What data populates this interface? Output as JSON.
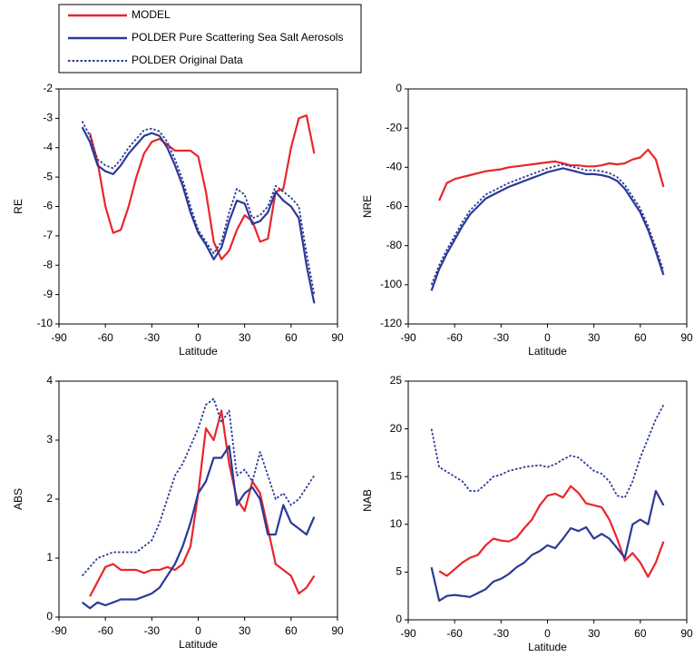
{
  "chart_data": [
    {
      "type": "line",
      "xlabel": "Latitude",
      "ylabel": "RE",
      "x": [
        -75,
        -70,
        -65,
        -60,
        -55,
        -50,
        -45,
        -40,
        -35,
        -30,
        -25,
        -20,
        -15,
        -10,
        -5,
        0,
        5,
        10,
        15,
        20,
        25,
        30,
        35,
        40,
        45,
        50,
        55,
        60,
        65,
        70,
        75
      ],
      "xlim": [
        -90,
        90
      ],
      "xticks": [
        -90,
        -60,
        -30,
        0,
        30,
        60,
        90
      ],
      "ylim": [
        -10,
        -2
      ],
      "yticks": [
        -10,
        -9,
        -8,
        -7,
        -6,
        -5,
        -4,
        -3,
        -2
      ],
      "series": [
        {
          "name": "MODEL",
          "color": "#e8262b",
          "style": "solid",
          "values": [
            null,
            -3.5,
            -4.5,
            -6,
            -6.9,
            -6.8,
            -6,
            -5,
            -4.2,
            -3.8,
            -3.7,
            -3.9,
            -4.1,
            -4.1,
            -4.1,
            -4.3,
            -5.5,
            -7.2,
            -7.8,
            -7.5,
            -6.8,
            -6.3,
            -6.5,
            -7.2,
            -7.1,
            -5.5,
            -5.4,
            -4,
            -3,
            -2.9,
            -4.2
          ]
        },
        {
          "name": "POLDER Pure Scattering Sea Salt Aerosols",
          "color": "#2b3a97",
          "style": "solid",
          "values": [
            -3.3,
            -3.8,
            -4.6,
            -4.8,
            -4.9,
            -4.6,
            -4.2,
            -3.9,
            -3.6,
            -3.5,
            -3.6,
            -4,
            -4.6,
            -5.3,
            -6.2,
            -6.9,
            -7.3,
            -7.8,
            -7.4,
            -6.5,
            -5.8,
            -5.9,
            -6.6,
            -6.5,
            -6.2,
            -5.5,
            -5.8,
            -6,
            -6.4,
            -8,
            -9.3
          ]
        },
        {
          "name": "POLDER Original Data",
          "color": "#2b3a97",
          "style": "dotted",
          "values": [
            -3.1,
            -3.6,
            -4.4,
            -4.6,
            -4.7,
            -4.4,
            -4,
            -3.7,
            -3.4,
            -3.35,
            -3.45,
            -3.8,
            -4.4,
            -5.1,
            -6,
            -6.8,
            -7.2,
            -7.6,
            -7.2,
            -6.2,
            -5.4,
            -5.6,
            -6.4,
            -6.3,
            -6,
            -5.3,
            -5.5,
            -5.7,
            -6,
            -7.6,
            -9
          ]
        }
      ]
    },
    {
      "type": "line",
      "xlabel": "Latitude",
      "ylabel": "NRE",
      "x": [
        -75,
        -70,
        -65,
        -60,
        -55,
        -50,
        -45,
        -40,
        -35,
        -30,
        -25,
        -20,
        -15,
        -10,
        -5,
        0,
        5,
        10,
        15,
        20,
        25,
        30,
        35,
        40,
        45,
        50,
        55,
        60,
        65,
        70,
        75
      ],
      "xlim": [
        -90,
        90
      ],
      "xticks": [
        -90,
        -60,
        -30,
        0,
        30,
        60,
        90
      ],
      "ylim": [
        -120,
        0
      ],
      "yticks": [
        -120,
        -100,
        -80,
        -60,
        -40,
        -20,
        0
      ],
      "series": [
        {
          "name": "MODEL",
          "color": "#e8262b",
          "style": "solid",
          "values": [
            null,
            -57,
            -48,
            -46,
            -45,
            -44,
            -43,
            -42,
            -41.5,
            -41,
            -40,
            -39.5,
            -39,
            -38.5,
            -38,
            -37.5,
            -37,
            -38,
            -39,
            -39,
            -39.5,
            -39.5,
            -39,
            -38,
            -38.5,
            -38,
            -36,
            -35,
            -31,
            -36,
            -50
          ]
        },
        {
          "name": "POLDER Pure Scattering Sea Salt Aerosols",
          "color": "#2b3a97",
          "style": "solid",
          "values": [
            -103,
            -92,
            -84,
            -77,
            -70,
            -64,
            -60,
            -56,
            -54,
            -52,
            -50,
            -48.5,
            -47,
            -45.5,
            -44,
            -42.5,
            -41.5,
            -40.5,
            -41.5,
            -42.5,
            -43.5,
            -43.5,
            -44,
            -45,
            -47,
            -51,
            -57,
            -63,
            -72,
            -83,
            -95
          ]
        },
        {
          "name": "POLDER Original Data",
          "color": "#2b3a97",
          "style": "dotted",
          "values": [
            -100,
            -90,
            -82,
            -75,
            -68,
            -62,
            -58,
            -54,
            -52,
            -50,
            -48,
            -46.5,
            -45,
            -43.5,
            -42,
            -40.5,
            -39.5,
            -38.5,
            -39.5,
            -40.5,
            -41.5,
            -41.5,
            -42,
            -43,
            -45,
            -49,
            -55,
            -61,
            -70,
            -81,
            -93
          ]
        }
      ]
    },
    {
      "type": "line",
      "xlabel": "Latitude",
      "ylabel": "ABS",
      "x": [
        -75,
        -70,
        -65,
        -60,
        -55,
        -50,
        -45,
        -40,
        -35,
        -30,
        -25,
        -20,
        -15,
        -10,
        -5,
        0,
        5,
        10,
        15,
        20,
        25,
        30,
        35,
        40,
        45,
        50,
        55,
        60,
        65,
        70,
        75
      ],
      "xlim": [
        -90,
        90
      ],
      "xticks": [
        -90,
        -60,
        -30,
        0,
        30,
        60,
        90
      ],
      "ylim": [
        0,
        4
      ],
      "yticks": [
        0,
        1,
        2,
        3,
        4
      ],
      "series": [
        {
          "name": "MODEL",
          "color": "#e8262b",
          "style": "solid",
          "values": [
            null,
            0.35,
            0.6,
            0.85,
            0.9,
            0.8,
            0.8,
            0.8,
            0.75,
            0.8,
            0.8,
            0.85,
            0.8,
            0.9,
            1.2,
            2.1,
            3.2,
            3,
            3.5,
            2.6,
            2,
            1.8,
            2.3,
            2.1,
            1.5,
            0.9,
            0.8,
            0.7,
            0.4,
            0.5,
            0.7
          ]
        },
        {
          "name": "POLDER Pure Scattering Sea Salt Aerosols",
          "color": "#2b3a97",
          "style": "solid",
          "values": [
            0.25,
            0.15,
            0.25,
            0.2,
            0.25,
            0.3,
            0.3,
            0.3,
            0.35,
            0.4,
            0.5,
            0.7,
            0.9,
            1.2,
            1.6,
            2.1,
            2.3,
            2.7,
            2.7,
            2.9,
            1.9,
            2.1,
            2.2,
            2,
            1.4,
            1.4,
            1.9,
            1.6,
            1.5,
            1.4,
            1.7
          ]
        },
        {
          "name": "POLDER Original Data",
          "color": "#2b3a97",
          "style": "dotted",
          "values": [
            0.7,
            0.85,
            1,
            1.05,
            1.1,
            1.1,
            1.1,
            1.1,
            1.2,
            1.3,
            1.6,
            2,
            2.4,
            2.6,
            2.9,
            3.2,
            3.6,
            3.7,
            3.3,
            3.5,
            2.4,
            2.5,
            2.3,
            2.8,
            2.4,
            2,
            2.1,
            1.9,
            2,
            2.2,
            2.4
          ]
        }
      ]
    },
    {
      "type": "line",
      "xlabel": "Latitude",
      "ylabel": "NAB",
      "x": [
        -75,
        -70,
        -65,
        -60,
        -55,
        -50,
        -45,
        -40,
        -35,
        -30,
        -25,
        -20,
        -15,
        -10,
        -5,
        0,
        5,
        10,
        15,
        20,
        25,
        30,
        35,
        40,
        45,
        50,
        55,
        60,
        65,
        70,
        75
      ],
      "xlim": [
        -90,
        90
      ],
      "xticks": [
        -90,
        -60,
        -30,
        0,
        30,
        60,
        90
      ],
      "ylim": [
        0,
        25
      ],
      "yticks": [
        0,
        5,
        10,
        15,
        20,
        25
      ],
      "series": [
        {
          "name": "MODEL",
          "color": "#e8262b",
          "style": "solid",
          "values": [
            null,
            5.1,
            4.6,
            5.3,
            6,
            6.5,
            6.8,
            7.8,
            8.5,
            8.3,
            8.2,
            8.6,
            9.6,
            10.5,
            12,
            13,
            13.2,
            12.8,
            14,
            13.3,
            12.2,
            12,
            11.8,
            10.5,
            8.5,
            6.2,
            7,
            6,
            4.5,
            6,
            8.2
          ]
        },
        {
          "name": "POLDER Pure Scattering Sea Salt Aerosols",
          "color": "#2b3a97",
          "style": "solid",
          "values": [
            5.5,
            2,
            2.5,
            2.6,
            2.5,
            2.4,
            2.8,
            3.2,
            4,
            4.3,
            4.8,
            5.5,
            6,
            6.8,
            7.2,
            7.8,
            7.5,
            8.5,
            9.6,
            9.3,
            9.7,
            8.5,
            9,
            8.5,
            7.5,
            6.5,
            10,
            10.5,
            10,
            13.5,
            12
          ]
        },
        {
          "name": "POLDER Original Data",
          "color": "#2b3a97",
          "style": "dotted",
          "values": [
            20,
            16,
            15.5,
            15,
            14.5,
            13.5,
            13.5,
            14.2,
            15,
            15.2,
            15.6,
            15.8,
            16,
            16.1,
            16.2,
            16,
            16.3,
            16.8,
            17.2,
            17,
            16.3,
            15.6,
            15.3,
            14.5,
            13,
            12.8,
            14.5,
            17,
            19,
            21,
            22.5
          ]
        }
      ]
    }
  ]
}
